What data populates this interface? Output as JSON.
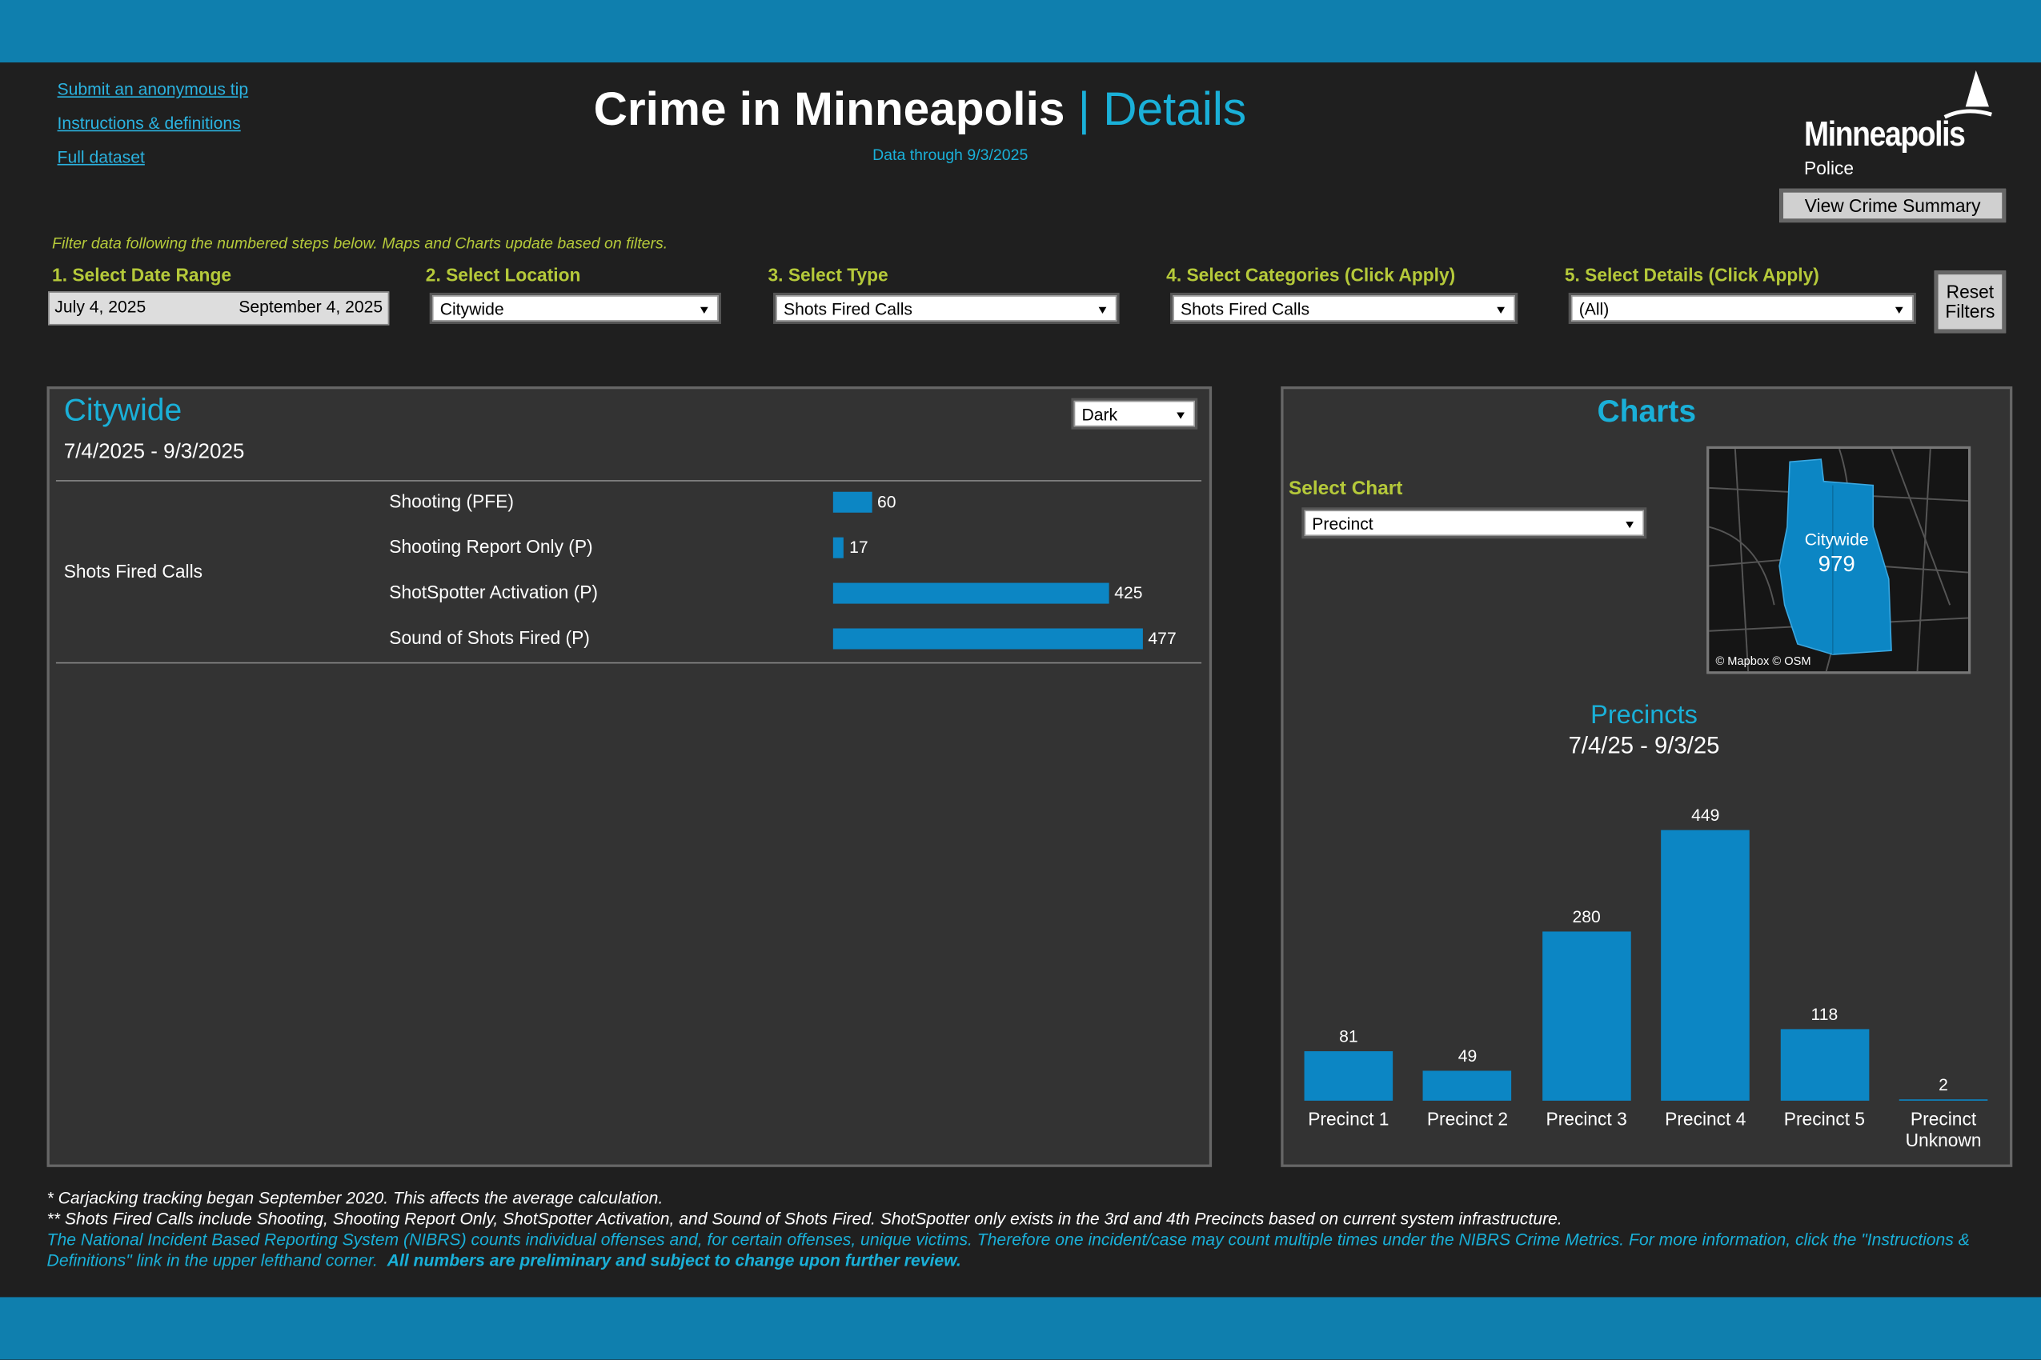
{
  "links": [
    "Submit an anonymous tip",
    "Instructions & definitions",
    "Full dataset"
  ],
  "header": {
    "title": "Crime in Minneapolis",
    "separator": "|",
    "title_suffix": "Details",
    "subtitle": "Data through 9/3/2025"
  },
  "logo": {
    "name": "Minneapolis",
    "unit": "Police"
  },
  "summary_button": "View Crime Summary",
  "instructions": "Filter data following the numbered steps below.  Maps and Charts update based on filters.",
  "date_filter": {
    "label": "1. Select Date Range",
    "start": "July 4, 2025",
    "end": "September 4, 2025"
  },
  "filters": [
    {
      "label": "2. Select Location",
      "value": "Citywide"
    },
    {
      "label": "3. Select Type",
      "value": "Shots Fired Calls"
    },
    {
      "label": "4. Select Categories (Click Apply)",
      "value": "Shots Fired Calls"
    },
    {
      "label": "5. Select Details (Click Apply)",
      "value": "(All)"
    }
  ],
  "reset_button": "Reset Filters",
  "left_panel": {
    "title": "Citywide",
    "date_range": "7/4/2025 - 9/3/2025",
    "theme": "Dark"
  },
  "right_panel": {
    "title": "Charts",
    "select_label": "Select Chart",
    "select_value": "Precinct",
    "map": {
      "label": "Citywide",
      "value": 979,
      "credit": "© Mapbox © OSM"
    }
  },
  "chart_data": [
    {
      "type": "hbar",
      "group": "Shots Fired Calls",
      "categories": [
        "Shooting (PFE)",
        "Shooting Report Only (P)",
        "ShotSpotter Activation (P)",
        "Sound of Shots Fired (P)"
      ],
      "values": [
        60,
        17,
        425,
        477
      ],
      "color": "#0c86c4"
    },
    {
      "type": "bar",
      "title": "Precincts",
      "subtitle": "7/4/25 - 9/3/25",
      "categories": [
        "Precinct 1",
        "Precinct 2",
        "Precinct 3",
        "Precinct 4",
        "Precinct 5",
        "Precinct Unknown"
      ],
      "values": [
        81,
        49,
        280,
        449,
        118,
        2
      ],
      "color": "#0c86c4"
    }
  ],
  "footnotes": {
    "carjacking": "* Carjacking tracking began September 2020.  This affects the average calculation.",
    "shots_fired": "** Shots Fired Calls include Shooting, Shooting Report Only, ShotSpotter Activation, and Sound of Shots Fired.  ShotSpotter only exists in the 3rd and 4th Precincts based on current system infrastructure.",
    "nibrs": "The National Incident Based Reporting System (NIBRS) counts individual offenses and, for certain offenses, unique victims.  Therefore one incident/case may count multiple times under the NIBRS Crime Metrics.  For more information, click the \"Instructions & Definitions\" link in the upper lefthand corner.",
    "preliminary": "All numbers are preliminary and subject to change upon further review."
  }
}
